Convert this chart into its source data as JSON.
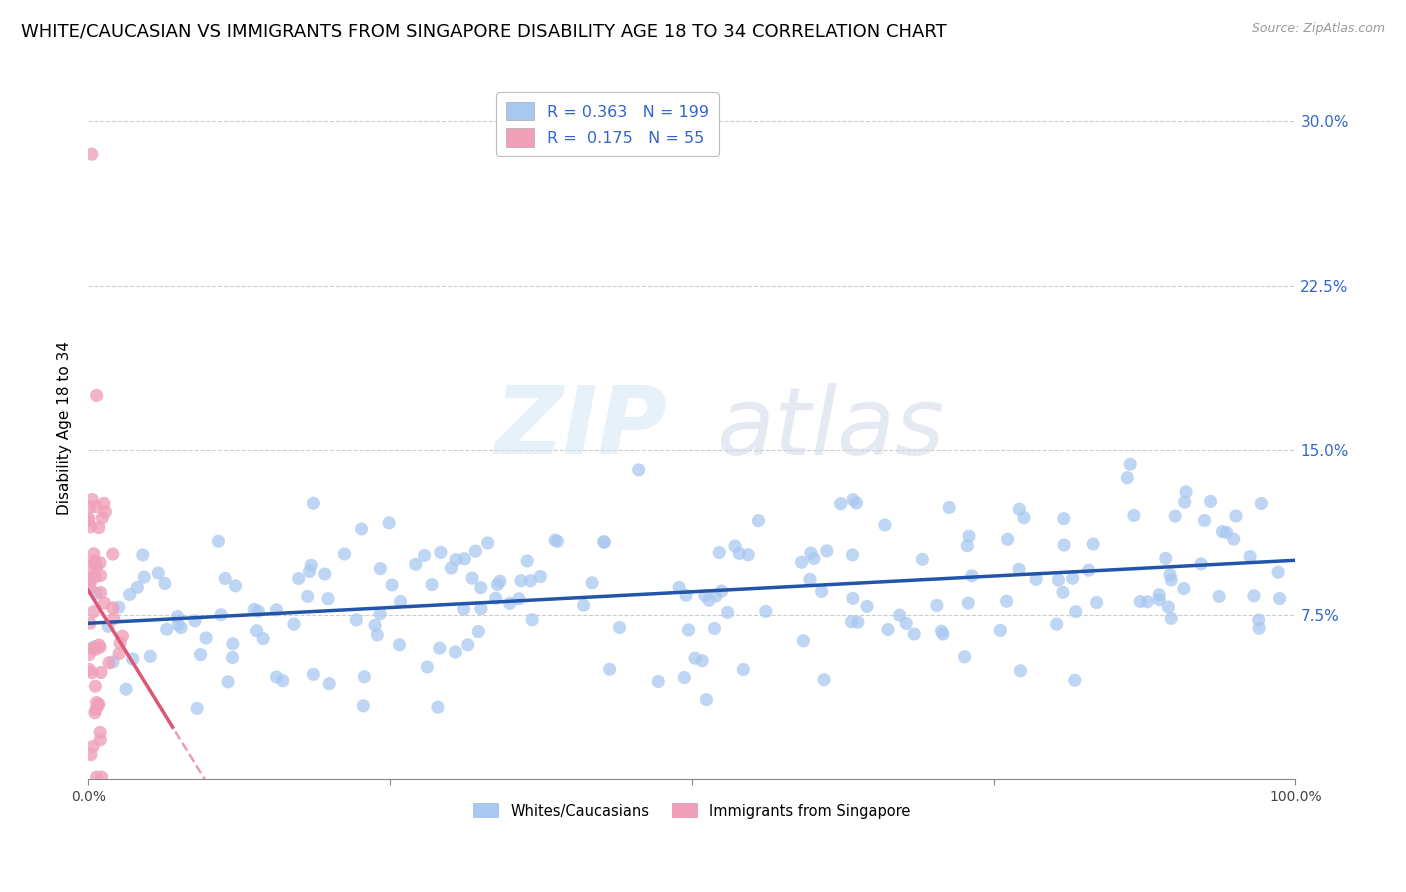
{
  "title": "WHITE/CAUCASIAN VS IMMIGRANTS FROM SINGAPORE DISABILITY AGE 18 TO 34 CORRELATION CHART",
  "source": "Source: ZipAtlas.com",
  "ylabel": "Disability Age 18 to 34",
  "xlim": [
    0,
    1
  ],
  "ylim": [
    0,
    0.32
  ],
  "yticks": [
    0.075,
    0.15,
    0.225,
    0.3
  ],
  "ytick_labels": [
    "7.5%",
    "15.0%",
    "22.5%",
    "30.0%"
  ],
  "xticks": [
    0.0,
    0.25,
    0.5,
    0.75,
    1.0
  ],
  "xtick_labels": [
    "0.0%",
    "",
    "",
    "",
    "100.0%"
  ],
  "blue_color": "#a8c8f0",
  "pink_color": "#f0a0b8",
  "blue_line_color": "#2255aa",
  "pink_line_color": "#dd5577",
  "pink_dash_color": "#e8a0b0",
  "blue_R": 0.363,
  "blue_N": 199,
  "pink_R": 0.175,
  "pink_N": 55,
  "legend_label_blue": "Whites/Caucasians",
  "legend_label_pink": "Immigrants from Singapore",
  "watermark_zip": "ZIP",
  "watermark_atlas": "atlas",
  "title_fontsize": 13,
  "axis_label_fontsize": 11,
  "tick_fontsize": 10,
  "blue_seed": 42,
  "pink_seed": 99
}
